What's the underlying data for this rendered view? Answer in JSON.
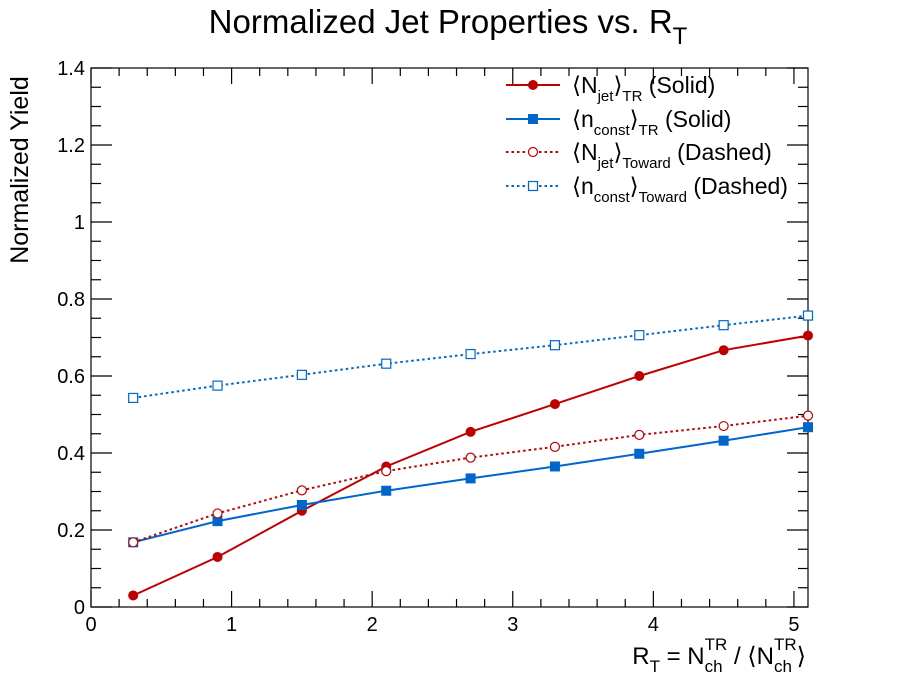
{
  "chart_data": {
    "type": "line",
    "title": "Normalized Jet Properties vs. R",
    "title_sub": "T",
    "xlabel": {
      "parts": [
        "R",
        "T",
        " = N",
        "ch",
        "TR",
        " / ⟨N",
        "ch",
        "TR",
        "⟩"
      ]
    },
    "ylabel": "Normalized Yield",
    "xlim": [
      0,
      5.1
    ],
    "ylim": [
      0,
      1.4
    ],
    "xticks": [
      0,
      1,
      2,
      3,
      4,
      5
    ],
    "xtick_labels": [
      "0",
      "1",
      "2",
      "3",
      "4",
      "5"
    ],
    "yticks": [
      0,
      0.2,
      0.4,
      0.6,
      0.8,
      1,
      1.2,
      1.4
    ],
    "ytick_labels": [
      "0",
      "0.2",
      "0.4",
      "0.6",
      "0.8",
      "1",
      "1.2",
      "1.4"
    ],
    "grid": false,
    "legend_position": "top-right",
    "x": [
      0.3,
      0.9,
      1.5,
      2.1,
      2.7,
      3.3,
      3.9,
      4.5,
      5.1
    ],
    "series": [
      {
        "name": "⟨N_jet⟩_TR (Solid)",
        "legend": {
          "main": "⟨N",
          "sub1": "jet",
          "mid": "⟩",
          "sub2": "TR",
          "tail": " (Solid)"
        },
        "color": "#c00000",
        "style": "solid",
        "marker": "circle-filled",
        "values": [
          0.03,
          0.13,
          0.25,
          0.365,
          0.455,
          0.527,
          0.6,
          0.667,
          0.705
        ]
      },
      {
        "name": "⟨n_const⟩_TR (Solid)",
        "legend": {
          "main": "⟨n",
          "sub1": "const",
          "mid": "⟩",
          "sub2": "TR",
          "tail": " (Solid)"
        },
        "color": "#0066cc",
        "style": "solid",
        "marker": "square-filled",
        "values": [
          0.168,
          0.223,
          0.265,
          0.302,
          0.334,
          0.365,
          0.398,
          0.432,
          0.467
        ]
      },
      {
        "name": "⟨N_jet⟩_Toward (Dashed)",
        "legend": {
          "main": "⟨N",
          "sub1": "jet",
          "mid": "⟩",
          "sub2": "Toward",
          "tail": " (Dashed)"
        },
        "color": "#c00000",
        "style": "dotted",
        "marker": "circle-open",
        "values": [
          0.168,
          0.243,
          0.303,
          0.353,
          0.388,
          0.416,
          0.447,
          0.47,
          0.497
        ]
      },
      {
        "name": "⟨n_const⟩_Toward (Dashed)",
        "legend": {
          "main": "⟨n",
          "sub1": "const",
          "mid": "⟩",
          "sub2": "Toward",
          "tail": " (Dashed)"
        },
        "color": "#0066cc",
        "style": "dotted",
        "marker": "square-open",
        "values": [
          0.543,
          0.575,
          0.603,
          0.632,
          0.657,
          0.68,
          0.706,
          0.732,
          0.757
        ]
      }
    ]
  }
}
